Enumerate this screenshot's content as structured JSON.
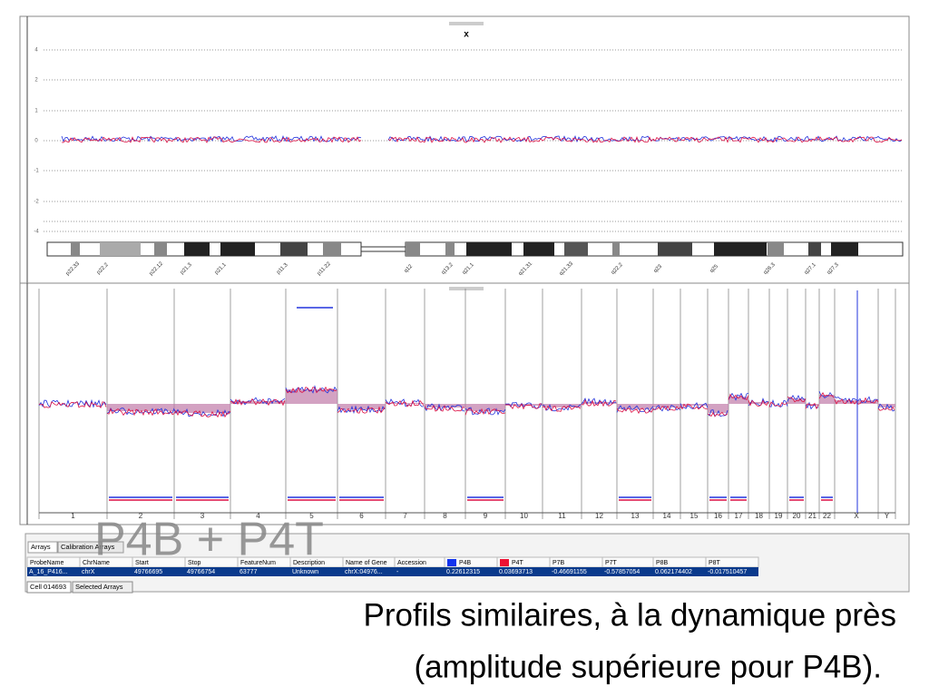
{
  "top_panel": {
    "title": "x",
    "y_labels": [
      "4",
      "2",
      "1",
      "0",
      "-1",
      "-2",
      "-4"
    ],
    "bands": [
      "p22.33",
      "p22.2",
      "p22.12",
      "p21.3",
      "p21.1",
      "p11.3",
      "p11.22",
      "q12",
      "q13.2",
      "q21.1",
      "q21.31",
      "q21.33",
      "q22.2",
      "q23",
      "q25",
      "q26.3",
      "q27.1",
      "q27.3"
    ]
  },
  "genome_panel": {
    "chromosomes": [
      "1",
      "2",
      "3",
      "4",
      "5",
      "6",
      "7",
      "8",
      "9",
      "10",
      "11",
      "12",
      "13",
      "14",
      "15",
      "16",
      "17",
      "18",
      "19",
      "20",
      "21",
      "22",
      "X",
      "Y"
    ]
  },
  "tabs": [
    "Arrays",
    "Calibration Arrays"
  ],
  "table": {
    "headers": [
      "ProbeName",
      "ChrName",
      "Start",
      "Stop",
      "FeatureNum",
      "Description",
      "Name of Gene",
      "Accession",
      "P4B",
      "P4T",
      "P7B",
      "P7T",
      "P8B",
      "P8T"
    ],
    "rows": [
      [
        "A_16_P416...",
        "chrX",
        "49766695",
        "49766754",
        "63777",
        "Unknown",
        "chrX:04976...",
        "-",
        "0.22612315",
        "0.03693713",
        "-0.46691155",
        "-0.57857054",
        "0.062174402",
        "-0.017510457"
      ]
    ]
  },
  "bottom_tabs": [
    "Cell 014693",
    "Selected Arrays"
  ],
  "overlay": {
    "title": "P4B + P4T",
    "caption": [
      "Profils similaires, à la dynamique près",
      "(amplitude supérieure pour P4B)."
    ]
  }
}
